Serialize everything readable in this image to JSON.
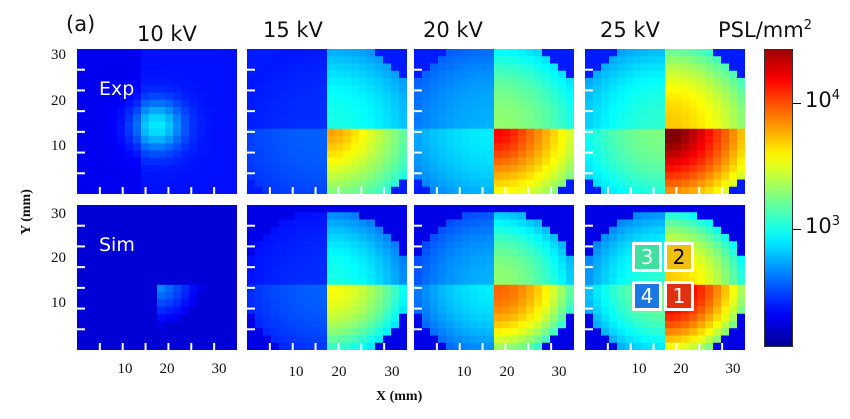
{
  "panel_tag": "(a)",
  "colorbar_label": "PSL/mm",
  "colorbar_label_sup": "2",
  "chart_data": {
    "type": "heatmap",
    "panel_tag": "(a)",
    "columns": [
      "10 kV",
      "15 kV",
      "20 kV",
      "25 kV"
    ],
    "rows": [
      "Exp",
      "Sim"
    ],
    "xlabel": "X (mm)",
    "ylabel": "Y (mm)",
    "xticks": [
      "10",
      "20",
      "30"
    ],
    "yticks": [
      "30",
      "20",
      "10"
    ],
    "colorbar": {
      "label": "PSL/mm2",
      "scale": "log",
      "ticks": [
        {
          "base": "10",
          "exp": "4"
        },
        {
          "base": "10",
          "exp": "3"
        }
      ],
      "colormap": "jet"
    },
    "quadrant_labels": [
      "3",
      "2",
      "4",
      "1"
    ]
  }
}
